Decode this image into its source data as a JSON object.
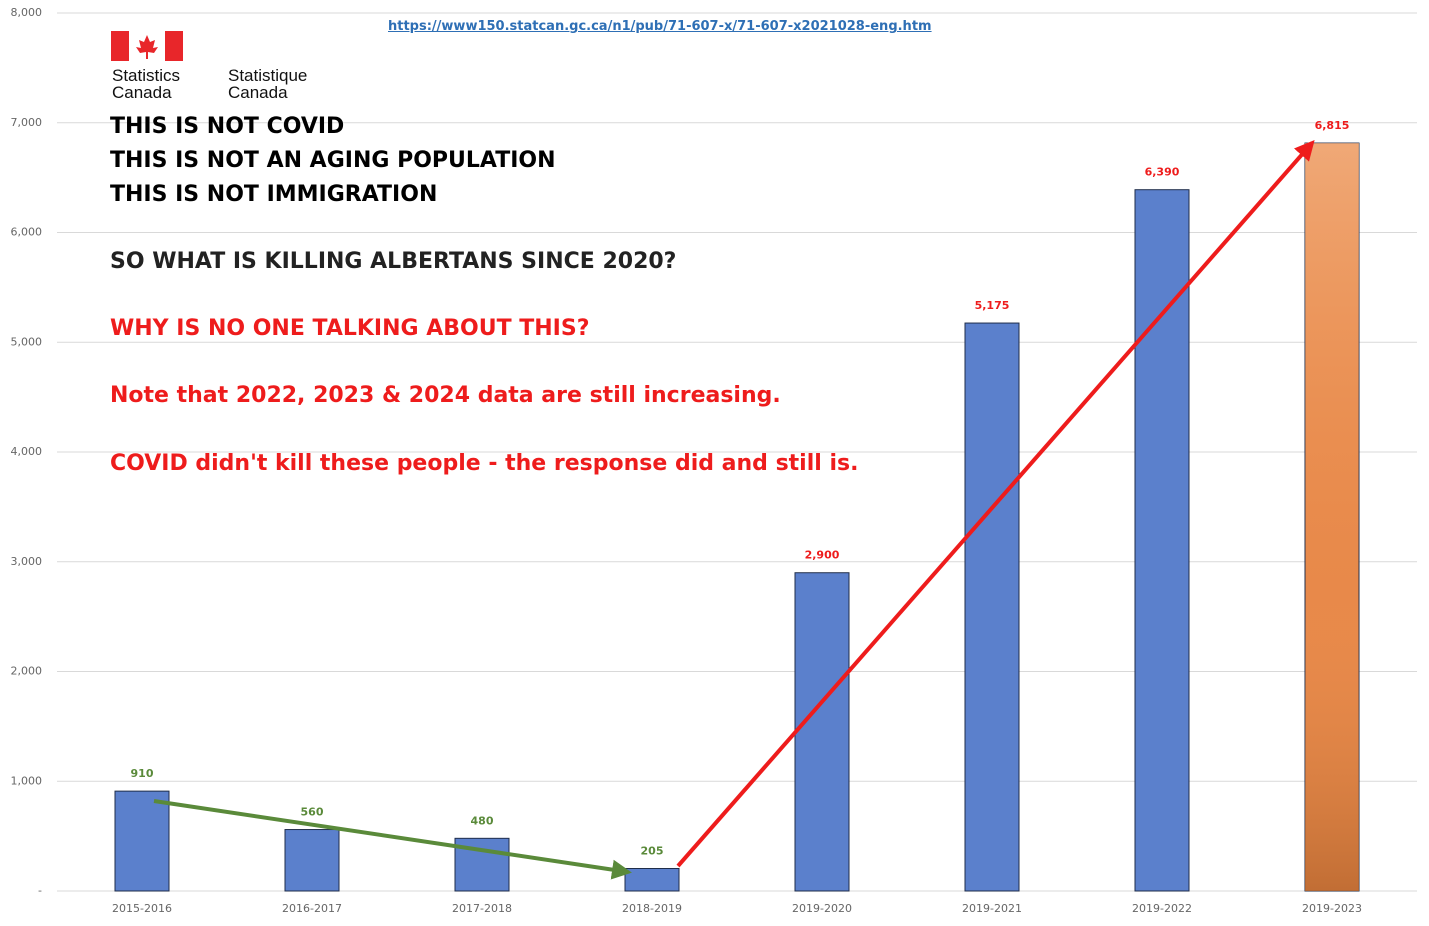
{
  "chart_data": {
    "type": "bar",
    "source_url": "https://www150.statcan.gc.ca/n1/pub/71-607-x/71-607-x2021028-eng.htm",
    "logo_text": [
      "Statistics Canada",
      "Statistique Canada"
    ],
    "annotations": [
      {
        "text": "THIS IS NOT COVID",
        "color": "#000000"
      },
      {
        "text": "THIS IS NOT AN AGING POPULATION",
        "color": "#000000"
      },
      {
        "text": "THIS IS NOT IMMIGRATION",
        "color": "#000000"
      },
      {
        "text": "SO WHAT IS KILLING ALBERTANS SINCE 2020?",
        "color": "#222222"
      },
      {
        "text": "WHY IS NO ONE TALKING ABOUT THIS?",
        "color": "#ee1c1c"
      },
      {
        "text": "Note that 2022, 2023 & 2024 data are still increasing.",
        "color": "#ee1c1c"
      },
      {
        "text": "COVID didn't kill these people - the response did and still is.",
        "color": "#ee1c1c"
      }
    ],
    "categories": [
      "2015-2016",
      "2016-2017",
      "2017-2018",
      "2018-2019",
      "2019-2020",
      "2019-2021",
      "2019-2022",
      "2019-2023"
    ],
    "values": [
      910,
      560,
      480,
      205,
      2900,
      5175,
      6390,
      6815
    ],
    "value_labels": [
      "910",
      "560",
      "480",
      "205",
      "2,900",
      "5,175",
      "6,390",
      "6,815"
    ],
    "colors": [
      "#5b80cc",
      "#5b80cc",
      "#5b80cc",
      "#5b80cc",
      "#5b80cc",
      "#5b80cc",
      "#5b80cc",
      "#e8894a"
    ],
    "value_label_colors": [
      "#5a8a3a",
      "#5a8a3a",
      "#5a8a3a",
      "#5a8a3a",
      "#ee1c1c",
      "#ee1c1c",
      "#ee1c1c",
      "#ee1c1c"
    ],
    "ylim": [
      0,
      8000
    ],
    "yticks": [
      {
        "value": 0,
        "label": "-"
      },
      {
        "value": 1000,
        "label": "1,000"
      },
      {
        "value": 2000,
        "label": "2,000"
      },
      {
        "value": 3000,
        "label": "3,000"
      },
      {
        "value": 4000,
        "label": "4,000"
      },
      {
        "value": 5000,
        "label": "5,000"
      },
      {
        "value": 6000,
        "label": "6,000"
      },
      {
        "value": 7000,
        "label": "7,000"
      },
      {
        "value": 8000,
        "label": "8,000"
      }
    ],
    "grid": true
  }
}
